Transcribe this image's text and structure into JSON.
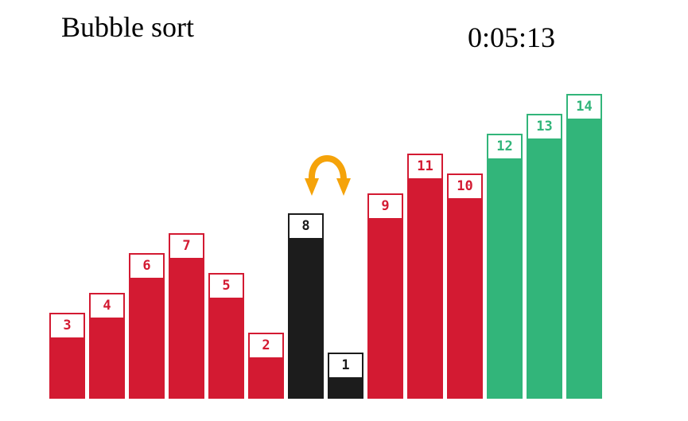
{
  "header": {
    "title": "Bubble sort",
    "timer": "0:05:13"
  },
  "colors": {
    "unsorted": "#d31a32",
    "comparing": "#1c1c1c",
    "sorted": "#32b57a",
    "swap_arrow": "#f5a30a"
  },
  "bars": [
    {
      "value": 3,
      "label": "3",
      "state": "unsorted"
    },
    {
      "value": 4,
      "label": "4",
      "state": "unsorted"
    },
    {
      "value": 6,
      "label": "6",
      "state": "unsorted"
    },
    {
      "value": 7,
      "label": "7",
      "state": "unsorted"
    },
    {
      "value": 5,
      "label": "5",
      "state": "unsorted"
    },
    {
      "value": 2,
      "label": "2",
      "state": "unsorted"
    },
    {
      "value": 8,
      "label": "8",
      "state": "comparing"
    },
    {
      "value": 1,
      "label": "1",
      "state": "comparing"
    },
    {
      "value": 9,
      "label": "9",
      "state": "unsorted"
    },
    {
      "value": 11,
      "label": "11",
      "state": "unsorted"
    },
    {
      "value": 10,
      "label": "10",
      "state": "unsorted"
    },
    {
      "value": 12,
      "label": "12",
      "state": "sorted"
    },
    {
      "value": 13,
      "label": "13",
      "state": "sorted"
    },
    {
      "value": 14,
      "label": "14",
      "state": "sorted"
    }
  ],
  "swap_indicator": {
    "icon": "swap-arrows-icon",
    "between": [
      6,
      7
    ]
  }
}
